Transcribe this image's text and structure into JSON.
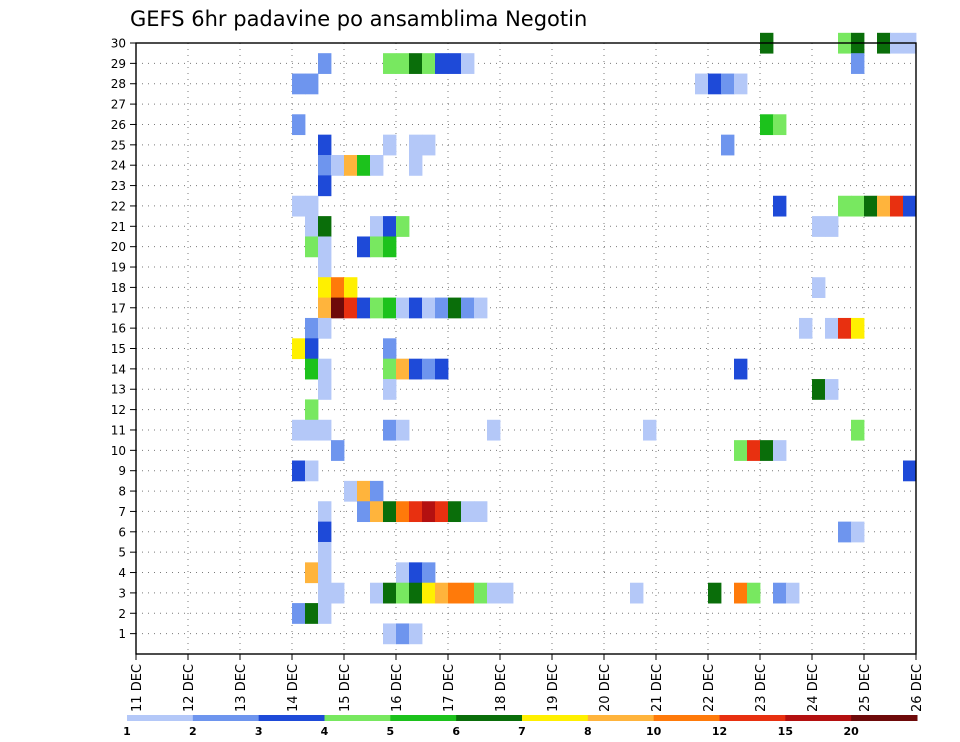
{
  "chart_data": {
    "type": "heatmap",
    "title": "GEFS 6hr padavine po ansamblima Negotin",
    "xlabel": "",
    "ylabel": "",
    "x_ticks": [
      "11 DEC",
      "12 DEC",
      "13 DEC",
      "14 DEC",
      "15 DEC",
      "16 DEC",
      "17 DEC",
      "18 DEC",
      "19 DEC",
      "20 DEC",
      "21 DEC",
      "22 DEC",
      "23 DEC",
      "24 DEC",
      "25 DEC",
      "26 DEC"
    ],
    "x_range_days": [
      11,
      26
    ],
    "y_ticks": [
      1,
      2,
      3,
      4,
      5,
      6,
      7,
      8,
      9,
      10,
      11,
      12,
      13,
      14,
      15,
      16,
      17,
      18,
      19,
      20,
      21,
      22,
      23,
      24,
      25,
      26,
      27,
      28,
      29,
      30
    ],
    "y_range": [
      0,
      30
    ],
    "grid": true,
    "legend_position": "bottom",
    "color_levels": [
      {
        "label": "1",
        "color": "#b4c8f8"
      },
      {
        "label": "2",
        "color": "#6e95ee"
      },
      {
        "label": "3",
        "color": "#1e4ad8"
      },
      {
        "label": "4",
        "color": "#78e860"
      },
      {
        "label": "5",
        "color": "#1cc21c"
      },
      {
        "label": "6",
        "color": "#0a6e0a"
      },
      {
        "label": "7",
        "color": "#fff000"
      },
      {
        "label": "8",
        "color": "#ffb43c"
      },
      {
        "label": "10",
        "color": "#ff7a0a"
      },
      {
        "label": "12",
        "color": "#e83010"
      },
      {
        "label": "15",
        "color": "#b41010"
      },
      {
        "label": "20",
        "color": "#6e0a0a"
      }
    ],
    "members": [
      {
        "member": 30,
        "cells": [
          [
            23.0,
            6
          ],
          [
            24.5,
            4
          ],
          [
            24.75,
            6
          ],
          [
            25.25,
            6
          ],
          [
            25.5,
            1
          ],
          [
            25.75,
            1
          ]
        ]
      },
      {
        "member": 29,
        "cells": [
          [
            14.5,
            2
          ],
          [
            15.75,
            4
          ],
          [
            16.0,
            4
          ],
          [
            16.25,
            6
          ],
          [
            16.5,
            4
          ],
          [
            16.75,
            3
          ],
          [
            17.0,
            3
          ],
          [
            17.25,
            1
          ],
          [
            24.75,
            2
          ]
        ]
      },
      {
        "member": 28,
        "cells": [
          [
            14.0,
            2
          ],
          [
            14.25,
            2
          ],
          [
            21.75,
            1
          ],
          [
            22.0,
            3
          ],
          [
            22.25,
            2
          ],
          [
            22.5,
            1
          ]
        ]
      },
      {
        "member": 26,
        "cells": [
          [
            14.0,
            2
          ],
          [
            23.0,
            5
          ],
          [
            23.25,
            4
          ]
        ]
      },
      {
        "member": 25,
        "cells": [
          [
            14.5,
            3
          ],
          [
            15.75,
            1
          ],
          [
            16.25,
            1
          ],
          [
            16.5,
            1
          ],
          [
            22.25,
            2
          ]
        ]
      },
      {
        "member": 24,
        "cells": [
          [
            14.5,
            2
          ],
          [
            14.75,
            1
          ],
          [
            15.0,
            8
          ],
          [
            15.25,
            5
          ],
          [
            15.5,
            1
          ],
          [
            16.25,
            1
          ]
        ]
      },
      {
        "member": 23,
        "cells": [
          [
            14.5,
            3
          ]
        ]
      },
      {
        "member": 22,
        "cells": [
          [
            14.0,
            1
          ],
          [
            14.25,
            1
          ],
          [
            23.25,
            3
          ],
          [
            24.5,
            4
          ],
          [
            24.75,
            4
          ],
          [
            25.0,
            6
          ],
          [
            25.25,
            8
          ],
          [
            25.5,
            12
          ],
          [
            25.75,
            3
          ]
        ]
      },
      {
        "member": 21,
        "cells": [
          [
            14.25,
            1
          ],
          [
            14.5,
            6
          ],
          [
            15.5,
            1
          ],
          [
            15.75,
            3
          ],
          [
            16.0,
            4
          ],
          [
            24.0,
            1
          ],
          [
            24.25,
            1
          ]
        ]
      },
      {
        "member": 20,
        "cells": [
          [
            14.25,
            4
          ],
          [
            14.5,
            1
          ],
          [
            15.25,
            3
          ],
          [
            15.5,
            4
          ],
          [
            15.75,
            5
          ]
        ]
      },
      {
        "member": 19,
        "cells": [
          [
            14.5,
            1
          ]
        ]
      },
      {
        "member": 18,
        "cells": [
          [
            14.5,
            7
          ],
          [
            14.75,
            10
          ],
          [
            15.0,
            7
          ],
          [
            24.0,
            1
          ]
        ]
      },
      {
        "member": 17,
        "cells": [
          [
            14.5,
            8
          ],
          [
            14.75,
            20
          ],
          [
            15.0,
            12
          ],
          [
            15.25,
            3
          ],
          [
            15.5,
            4
          ],
          [
            15.75,
            5
          ],
          [
            16.0,
            1
          ],
          [
            16.25,
            3
          ],
          [
            16.5,
            1
          ],
          [
            16.75,
            2
          ],
          [
            17.0,
            6
          ],
          [
            17.25,
            2
          ],
          [
            17.5,
            1
          ]
        ]
      },
      {
        "member": 16,
        "cells": [
          [
            14.25,
            2
          ],
          [
            14.5,
            1
          ],
          [
            23.75,
            1
          ],
          [
            24.25,
            1
          ],
          [
            24.5,
            12
          ],
          [
            24.75,
            7
          ]
        ]
      },
      {
        "member": 15,
        "cells": [
          [
            14.0,
            7
          ],
          [
            14.25,
            3
          ],
          [
            15.75,
            2
          ]
        ]
      },
      {
        "member": 14,
        "cells": [
          [
            14.25,
            5
          ],
          [
            14.5,
            1
          ],
          [
            15.75,
            4
          ],
          [
            16.0,
            8
          ],
          [
            16.25,
            3
          ],
          [
            16.5,
            2
          ],
          [
            16.75,
            3
          ],
          [
            22.5,
            3
          ]
        ]
      },
      {
        "member": 13,
        "cells": [
          [
            14.5,
            1
          ],
          [
            15.75,
            1
          ],
          [
            24.0,
            6
          ],
          [
            24.25,
            1
          ]
        ]
      },
      {
        "member": 12,
        "cells": [
          [
            14.25,
            4
          ]
        ]
      },
      {
        "member": 11,
        "cells": [
          [
            14.0,
            1
          ],
          [
            14.25,
            1
          ],
          [
            14.5,
            1
          ],
          [
            15.75,
            2
          ],
          [
            16.0,
            1
          ],
          [
            17.75,
            1
          ],
          [
            20.75,
            1
          ],
          [
            24.75,
            4
          ]
        ]
      },
      {
        "member": 10,
        "cells": [
          [
            14.75,
            2
          ],
          [
            22.5,
            4
          ],
          [
            22.75,
            12
          ],
          [
            23.0,
            6
          ],
          [
            23.25,
            1
          ]
        ]
      },
      {
        "member": 9,
        "cells": [
          [
            14.0,
            3
          ],
          [
            14.25,
            1
          ],
          [
            25.75,
            3
          ]
        ]
      },
      {
        "member": 8,
        "cells": [
          [
            15.0,
            1
          ],
          [
            15.25,
            8
          ],
          [
            15.5,
            2
          ]
        ]
      },
      {
        "member": 7,
        "cells": [
          [
            14.5,
            1
          ],
          [
            15.25,
            2
          ],
          [
            15.5,
            8
          ],
          [
            15.75,
            6
          ],
          [
            16.0,
            10
          ],
          [
            16.25,
            12
          ],
          [
            16.5,
            15
          ],
          [
            16.75,
            12
          ],
          [
            17.0,
            6
          ],
          [
            17.25,
            1
          ],
          [
            17.5,
            1
          ]
        ]
      },
      {
        "member": 6,
        "cells": [
          [
            14.5,
            3
          ],
          [
            24.5,
            2
          ],
          [
            24.75,
            1
          ]
        ]
      },
      {
        "member": 5,
        "cells": [
          [
            14.5,
            1
          ]
        ]
      },
      {
        "member": 4,
        "cells": [
          [
            14.25,
            8
          ],
          [
            14.5,
            1
          ],
          [
            16.0,
            1
          ],
          [
            16.25,
            3
          ],
          [
            16.5,
            2
          ]
        ]
      },
      {
        "member": 3,
        "cells": [
          [
            14.5,
            1
          ],
          [
            14.75,
            1
          ],
          [
            15.5,
            1
          ],
          [
            15.75,
            6
          ],
          [
            16.0,
            4
          ],
          [
            16.25,
            6
          ],
          [
            16.5,
            7
          ],
          [
            16.75,
            8
          ],
          [
            17.0,
            10
          ],
          [
            17.25,
            10
          ],
          [
            17.5,
            4
          ],
          [
            17.75,
            1
          ],
          [
            18.0,
            1
          ],
          [
            20.5,
            1
          ],
          [
            22.0,
            6
          ],
          [
            22.5,
            10
          ],
          [
            22.75,
            4
          ],
          [
            23.25,
            2
          ],
          [
            23.5,
            1
          ]
        ]
      },
      {
        "member": 2,
        "cells": [
          [
            14.0,
            2
          ],
          [
            14.25,
            6
          ],
          [
            14.5,
            1
          ]
        ]
      },
      {
        "member": 1,
        "cells": [
          [
            15.75,
            1
          ],
          [
            16.0,
            2
          ],
          [
            16.25,
            1
          ]
        ]
      }
    ]
  }
}
